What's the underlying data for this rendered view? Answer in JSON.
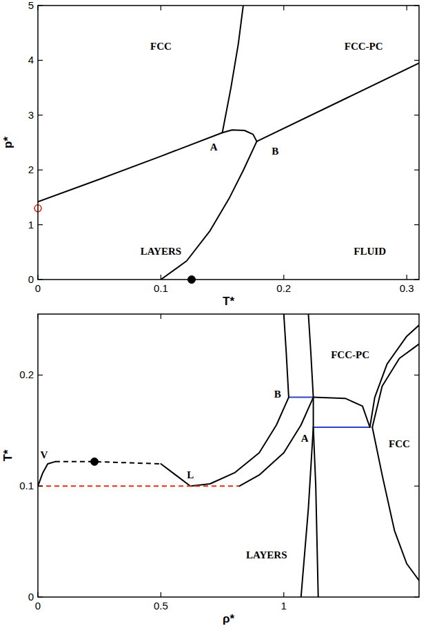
{
  "chart_data": [
    {
      "type": "line",
      "x_label": "T*",
      "y_label": "p*",
      "xlim": [
        0,
        0.31
      ],
      "ylim": [
        0,
        5
      ],
      "xticks": [
        0,
        0.1,
        0.2,
        0.3
      ],
      "yticks": [
        0,
        1,
        2,
        3,
        4,
        5
      ],
      "series": [
        {
          "type": "line",
          "color": "#000000",
          "line_style": "solid",
          "x": [
            0,
            0.05,
            0.1,
            0.15
          ],
          "values": [
            1.42,
            1.83,
            2.25,
            2.68
          ]
        },
        {
          "type": "line",
          "color": "#000000",
          "line_style": "solid",
          "x": [
            0.15,
            0.157,
            0.163,
            0.167
          ],
          "values": [
            2.68,
            3.5,
            4.3,
            5.0
          ]
        },
        {
          "type": "line",
          "color": "#000000",
          "line_style": "solid",
          "x": [
            0.15,
            0.158,
            0.168,
            0.175,
            0.178
          ],
          "values": [
            2.68,
            2.73,
            2.72,
            2.65,
            2.52
          ]
        },
        {
          "type": "line",
          "color": "#000000",
          "line_style": "solid",
          "x": [
            0.178,
            0.25,
            0.31
          ],
          "values": [
            2.52,
            3.3,
            3.95
          ]
        },
        {
          "type": "line",
          "color": "#000000",
          "line_style": "solid",
          "x": [
            0.178,
            0.167,
            0.156,
            0.14,
            0.121,
            0.1
          ],
          "values": [
            2.52,
            1.99,
            1.5,
            0.89,
            0.34,
            0
          ]
        },
        {
          "type": "scatter",
          "color": "#000000",
          "marker": "circle",
          "x": [
            0.125
          ],
          "values": [
            0
          ]
        },
        {
          "type": "scatter",
          "color": "#e8291c",
          "marker": "open_circle",
          "x": [
            0
          ],
          "values": [
            1.3
          ]
        }
      ],
      "annotations": [
        {
          "text": "FCC",
          "x": 0.1,
          "y": 4.2
        },
        {
          "text": "FCC-PC",
          "x": 0.265,
          "y": 4.2
        },
        {
          "text": "LAYERS",
          "x": 0.1,
          "y": 0.45
        },
        {
          "text": "FLUID",
          "x": 0.27,
          "y": 0.45
        },
        {
          "text": "A",
          "x": 0.143,
          "y": 2.35
        },
        {
          "text": "B",
          "x": 0.193,
          "y": 2.28
        }
      ]
    },
    {
      "type": "line",
      "x_label": "ρ*",
      "y_label": "T*",
      "xlim": [
        0,
        1.55
      ],
      "ylim": [
        0,
        0.255
      ],
      "xticks": [
        0,
        0.5,
        1
      ],
      "yticks": [
        0,
        0.1,
        0.2
      ],
      "series": [
        {
          "type": "line",
          "color": "#000000",
          "line_style": "solid",
          "x": [
            0,
            0.02,
            0.04,
            0.07
          ],
          "values": [
            0.1,
            0.112,
            0.12,
            0.122
          ]
        },
        {
          "type": "line",
          "color": "#000000",
          "line_style": "dashed",
          "x": [
            0.07,
            0.23,
            0.5
          ],
          "values": [
            0.122,
            0.122,
            0.12
          ]
        },
        {
          "type": "line",
          "color": "#000000",
          "line_style": "solid",
          "x": [
            0.5,
            0.56,
            0.62,
            0.7,
            0.8,
            0.9,
            0.97,
            1.02
          ],
          "values": [
            0.12,
            0.11,
            0.1,
            0.102,
            0.112,
            0.13,
            0.155,
            0.18
          ]
        },
        {
          "type": "line",
          "color": "#e8291c",
          "line_style": "dashed",
          "x": [
            0,
            0.82
          ],
          "values": [
            0.1,
            0.1
          ]
        },
        {
          "type": "line",
          "color": "#000000",
          "line_style": "solid",
          "x": [
            0.82,
            0.9,
            1.0,
            1.07,
            1.12
          ],
          "values": [
            0.1,
            0.11,
            0.13,
            0.155,
            0.18
          ]
        },
        {
          "type": "line",
          "color": "#2a45c4",
          "line_style": "solid",
          "x": [
            1.02,
            1.12
          ],
          "values": [
            0.18,
            0.18
          ]
        },
        {
          "type": "line",
          "color": "#000000",
          "line_style": "solid",
          "x": [
            1.02,
            1.01,
            1.0
          ],
          "values": [
            0.18,
            0.22,
            0.255
          ]
        },
        {
          "type": "line",
          "color": "#000000",
          "line_style": "solid",
          "x": [
            1.1,
            1.11,
            1.12,
            1.12,
            1.1,
            1.07
          ],
          "values": [
            0.255,
            0.22,
            0.18,
            0.153,
            0.08,
            0
          ]
        },
        {
          "type": "line",
          "color": "#000000",
          "line_style": "solid",
          "x": [
            1.12,
            1.25,
            1.32,
            1.35
          ],
          "values": [
            0.18,
            0.179,
            0.172,
            0.153
          ]
        },
        {
          "type": "line",
          "color": "#2a45c4",
          "line_style": "solid",
          "x": [
            1.12,
            1.35
          ],
          "values": [
            0.153,
            0.153
          ]
        },
        {
          "type": "line",
          "color": "#000000",
          "line_style": "solid",
          "x": [
            1.12,
            1.13,
            1.14
          ],
          "values": [
            0.153,
            0.1,
            0
          ]
        },
        {
          "type": "line",
          "color": "#000000",
          "line_style": "solid",
          "x": [
            1.35,
            1.37,
            1.42,
            1.5,
            1.55
          ],
          "values": [
            0.153,
            0.18,
            0.21,
            0.235,
            0.245
          ]
        },
        {
          "type": "line",
          "color": "#000000",
          "line_style": "solid",
          "x": [
            1.36,
            1.4,
            1.47,
            1.55
          ],
          "values": [
            0.153,
            0.19,
            0.215,
            0.228
          ]
        },
        {
          "type": "line",
          "color": "#000000",
          "line_style": "solid",
          "x": [
            1.36,
            1.4,
            1.45,
            1.5,
            1.55
          ],
          "values": [
            0.153,
            0.11,
            0.06,
            0.03,
            0.015
          ]
        },
        {
          "type": "scatter",
          "color": "#000000",
          "marker": "circle",
          "x": [
            0.23
          ],
          "values": [
            0.122
          ]
        }
      ],
      "annotations": [
        {
          "text": "V",
          "x": 0.025,
          "y": 0.125
        },
        {
          "text": "L",
          "x": 0.62,
          "y": 0.107
        },
        {
          "text": "B",
          "x": 0.975,
          "y": 0.18
        },
        {
          "text": "A",
          "x": 1.085,
          "y": 0.14
        },
        {
          "text": "FCC-PC",
          "x": 1.27,
          "y": 0.215
        },
        {
          "text": "FCC",
          "x": 1.47,
          "y": 0.135
        },
        {
          "text": "LAYERS",
          "x": 0.93,
          "y": 0.035
        }
      ]
    }
  ]
}
